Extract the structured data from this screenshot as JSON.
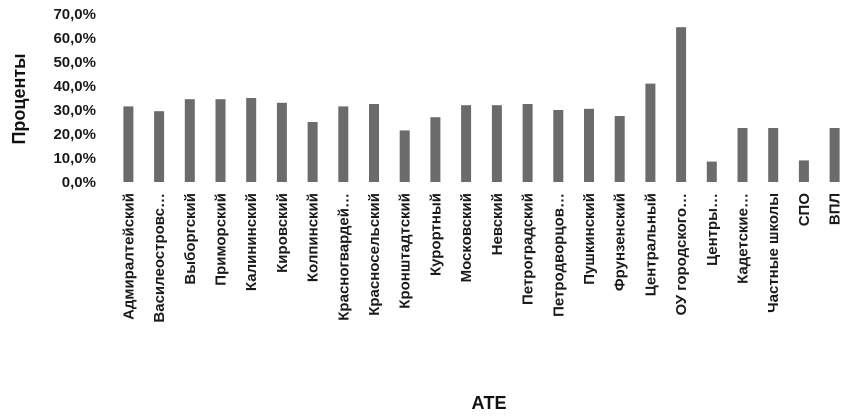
{
  "chart_data": {
    "type": "bar",
    "title": "",
    "xlabel": "АТЕ",
    "ylabel": "Проценты",
    "ylim": [
      0,
      70
    ],
    "yticks": [
      "0,0%",
      "10,0%",
      "20,0%",
      "30,0%",
      "40,0%",
      "50,0%",
      "60,0%",
      "70,0%"
    ],
    "grid": false,
    "legend": "none",
    "bar_color": "#6b6b6b",
    "categories": [
      "Адмиралтейский",
      "Василеостровс…",
      "Выборгский",
      "Приморский",
      "Калининский",
      "Кировский",
      "Колпинский",
      "Красногвардей…",
      "Красносельский",
      "Кронштадтский",
      "Курортный",
      "Московский",
      "Невский",
      "Петроградский",
      "Петродворцов…",
      "Пушкинский",
      "Фрунзенский",
      "Центральный",
      "ОУ городского…",
      "Центры…",
      "Кадетские…",
      "Частные школы",
      "СПО",
      "ВПЛ"
    ],
    "values": [
      31.5,
      29.5,
      34.5,
      34.5,
      35,
      33,
      25,
      31.5,
      32.5,
      21.5,
      27,
      32,
      32,
      32.5,
      30,
      30.5,
      27.5,
      41,
      64.5,
      8.5,
      22.5,
      22.5,
      9,
      22.5
    ]
  }
}
